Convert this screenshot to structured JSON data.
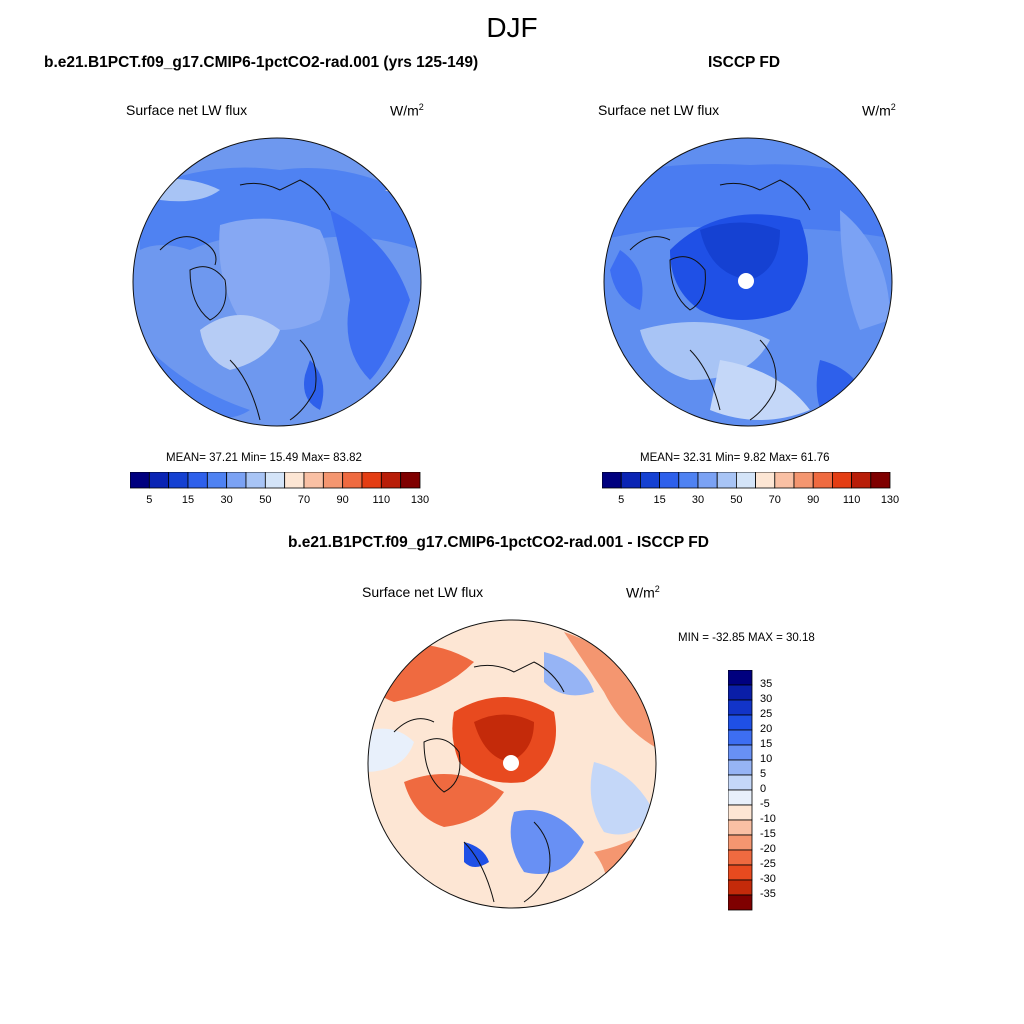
{
  "season": "DJF",
  "panels": {
    "model": {
      "title": "b.e21.B1PCT.f09_g17.CMIP6-1pctCO2-rad.001 (yrs 125-149)",
      "variable": "Surface net LW flux",
      "units": "W/m",
      "units_exp": "2",
      "stats": "MEAN=  37.21  Min=  15.49  Max=  83.82"
    },
    "obs": {
      "title": "ISCCP FD",
      "variable": "Surface net LW flux",
      "units": "W/m",
      "units_exp": "2",
      "stats": "MEAN=  32.31  Min=   9.82  Max=  61.76"
    },
    "diff": {
      "title": "b.e21.B1PCT.f09_g17.CMIP6-1pctCO2-rad.001 - ISCCP FD",
      "variable": "Surface net LW flux",
      "units": "W/m",
      "units_exp": "2",
      "stats": "MIN = -32.85 MAX =  30.18"
    }
  },
  "colorbar_abs": {
    "colors": [
      "#00007f",
      "#0a24b4",
      "#1541d2",
      "#2e60eb",
      "#4f82f2",
      "#7ba2f4",
      "#a8c4f5",
      "#d4e4f8",
      "#fde6d4",
      "#f9c0a4",
      "#f49670",
      "#ef6a40",
      "#e43d13",
      "#b81d08",
      "#7f0000"
    ],
    "labels": [
      "5",
      "15",
      "30",
      "50",
      "70",
      "90",
      "110",
      "130"
    ]
  },
  "colorbar_diff": {
    "colors": [
      "#00007f",
      "#0a1ea8",
      "#1234c8",
      "#1f50e6",
      "#3d6ef2",
      "#6890f4",
      "#96b4f5",
      "#c4d7f8",
      "#e8f0fb",
      "#fde6d4",
      "#f9c0a4",
      "#f49670",
      "#ef6a40",
      "#e84a1f",
      "#c42a0a",
      "#7f0000"
    ],
    "labels": [
      "35",
      "30",
      "25",
      "20",
      "15",
      "10",
      "5",
      "0",
      "-5",
      "-10",
      "-15",
      "-20",
      "-25",
      "-30",
      "-35"
    ]
  },
  "chart_data": [
    {
      "type": "heatmap",
      "title": "b.e21.B1PCT.f09_g17.CMIP6-1pctCO2-rad.001 (yrs 125-149)",
      "projection": "north polar stereographic",
      "variable": "Surface net LW flux",
      "units": "W/m2",
      "mean": 37.21,
      "min": 15.49,
      "max": 83.82,
      "contour_levels": [
        5,
        10,
        15,
        20,
        25,
        30,
        40,
        50,
        60,
        70,
        80,
        90,
        100,
        110,
        120,
        130
      ]
    },
    {
      "type": "heatmap",
      "title": "ISCCP FD",
      "projection": "north polar stereographic",
      "variable": "Surface net LW flux",
      "units": "W/m2",
      "mean": 32.31,
      "min": 9.82,
      "max": 61.76,
      "contour_levels": [
        5,
        10,
        15,
        20,
        25,
        30,
        40,
        50,
        60,
        70,
        80,
        90,
        100,
        110,
        120,
        130
      ]
    },
    {
      "type": "heatmap",
      "title": "b.e21.B1PCT.f09_g17.CMIP6-1pctCO2-rad.001 - ISCCP FD",
      "projection": "north polar stereographic",
      "variable": "Surface net LW flux",
      "units": "W/m2",
      "min": -32.85,
      "max": 30.18,
      "contour_levels": [
        -35,
        -30,
        -25,
        -20,
        -15,
        -10,
        -5,
        0,
        5,
        10,
        15,
        20,
        25,
        30,
        35
      ]
    }
  ]
}
